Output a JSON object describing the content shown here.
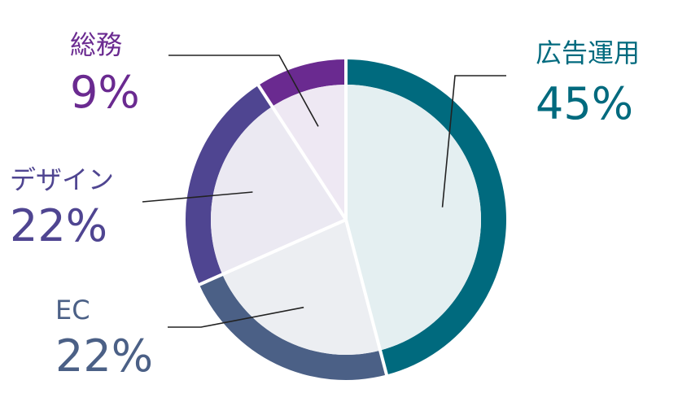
{
  "chart_data": {
    "type": "pie",
    "title": "",
    "slices": [
      {
        "label": "広告運用",
        "value": 45,
        "value_label": "45%",
        "color": "#006a7e",
        "fill": "#e4eff1"
      },
      {
        "label": "EC",
        "value": 22,
        "value_label": "22%",
        "color": "#4b6086",
        "fill": "#eceef2"
      },
      {
        "label": "デザイン",
        "value": 22,
        "value_label": "22%",
        "color": "#4f4591",
        "fill": "#ebe9f2"
      },
      {
        "label": "総務",
        "value": 9,
        "value_label": "9%",
        "color": "#6a2a90",
        "fill": "#eee8f3"
      }
    ],
    "start_angle": "12 o'clock",
    "direction": "clockwise",
    "style": "donut-ring-with-light-fill",
    "legend": "none"
  }
}
